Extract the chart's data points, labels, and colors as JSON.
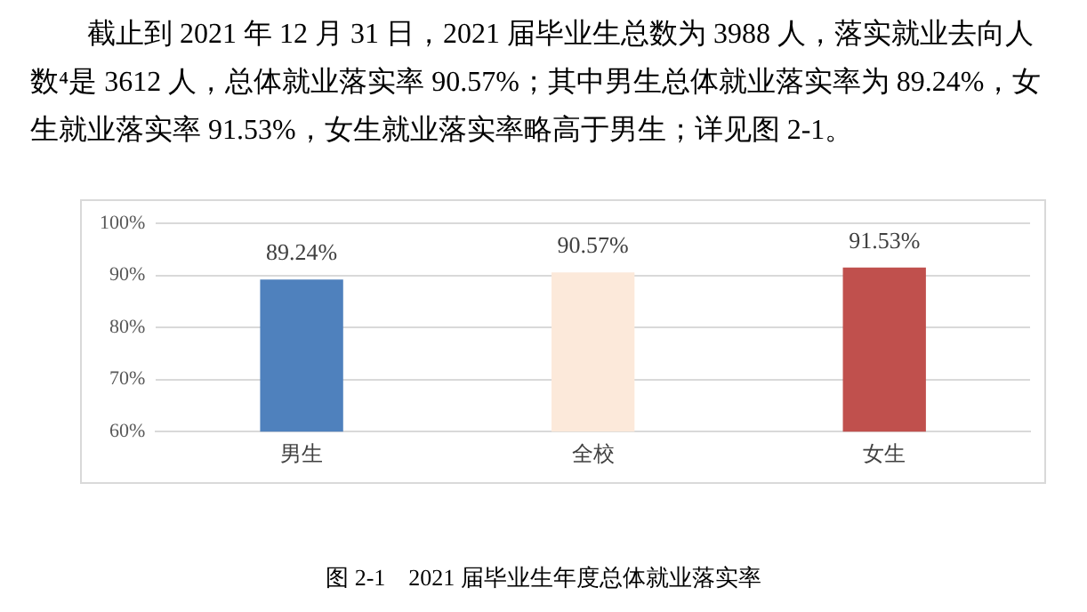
{
  "chart_data": {
    "type": "bar",
    "annotations": [
      "截止到 2021 年 12 月 31 日，2021 届毕业生总数为 3988 人，落实就业去向人数⁴是 3612 人，总体就业落实率 90.57%；其中男生总体就业落实率为 89.24%，女生就业落实率 91.53%，女生就业落实率略高于男生；详见图 2-1。",
      "图 2-1　2021 届毕业生年度总体就业落实率"
    ],
    "categories": [
      "男生",
      "全校",
      "女生"
    ],
    "values": [
      89.24,
      90.57,
      91.53
    ],
    "colors": [
      "#4f81bd",
      "#fce9da",
      "#c0504d"
    ],
    "value_labels": [
      "89.24%",
      "90.57%",
      "91.53%"
    ],
    "ylim": [
      60,
      100
    ],
    "yticks": [
      {
        "value": 60,
        "label": "60%"
      },
      {
        "value": 70,
        "label": "70%"
      },
      {
        "value": 80,
        "label": "80%"
      },
      {
        "value": 90,
        "label": "90%"
      },
      {
        "value": 100,
        "label": "100%"
      }
    ],
    "grid": "y",
    "legend": false
  }
}
